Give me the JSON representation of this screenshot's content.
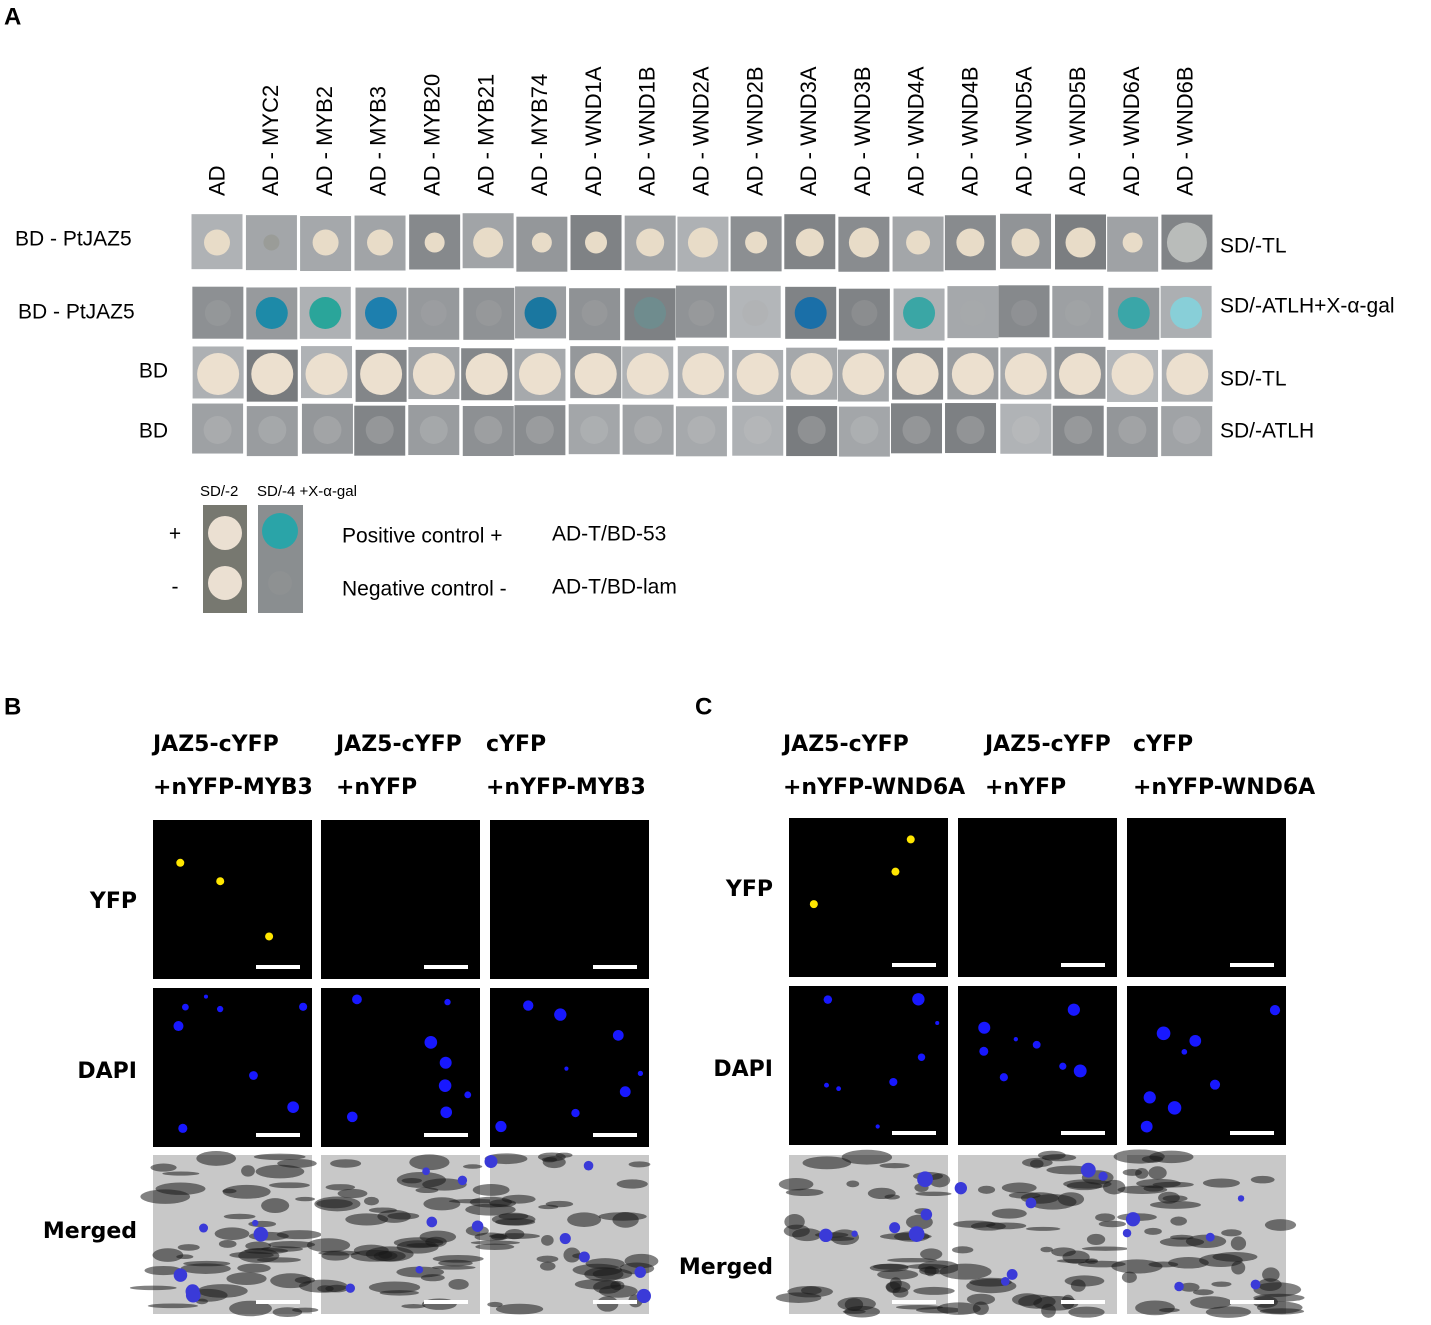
{
  "panel_a": {
    "label": "A",
    "columns": [
      "AD",
      "AD - MYC2",
      "AD - MYB2",
      "AD - MYB3",
      "AD - MYB20",
      "AD - MYB21",
      "AD - MYB74",
      "AD - WND1A",
      "AD - WND1B",
      "AD - WND2A",
      "AD - WND2B",
      "AD - WND3A",
      "AD - WND3B",
      "AD - WND4A",
      "AD - WND4B",
      "AD - WND5A",
      "AD - WND5B",
      "AD - WND6A",
      "AD - WND6B"
    ],
    "rows": [
      {
        "label": "BD - PtJAZ5",
        "medium": "SD/-TL"
      },
      {
        "label": "BD - PtJAZ5",
        "medium": "SD/-ATLH+X-α-gal"
      },
      {
        "label": "BD",
        "medium": "SD/-TL"
      },
      {
        "label": "BD",
        "medium": "SD/-ATLH"
      }
    ],
    "controls": {
      "media": [
        "SD/-2",
        "SD/-4 +X-α-gal"
      ],
      "signs": [
        "+",
        "-"
      ],
      "descriptions": [
        "Positive control +",
        "Negative control -"
      ],
      "constructs": [
        "AD-T/BD-53",
        "AD-T/BD-lam"
      ]
    }
  },
  "panel_b": {
    "label": "B",
    "columns": [
      [
        "JAZ5-cYFP",
        "+nYFP-MYB3"
      ],
      [
        "JAZ5-cYFP",
        "+nYFP"
      ],
      [
        "cYFP",
        "+nYFP-MYB3"
      ]
    ],
    "rows": [
      "YFP",
      "DAPI",
      "Merged"
    ]
  },
  "panel_c": {
    "label": "C",
    "columns": [
      [
        "JAZ5-cYFP",
        "+nYFP-WND6A"
      ],
      [
        "JAZ5-cYFP",
        "+nYFP"
      ],
      [
        "cYFP",
        "+nYFP-WND6A"
      ]
    ],
    "rows": [
      "YFP",
      "DAPI",
      "Merged"
    ]
  }
}
